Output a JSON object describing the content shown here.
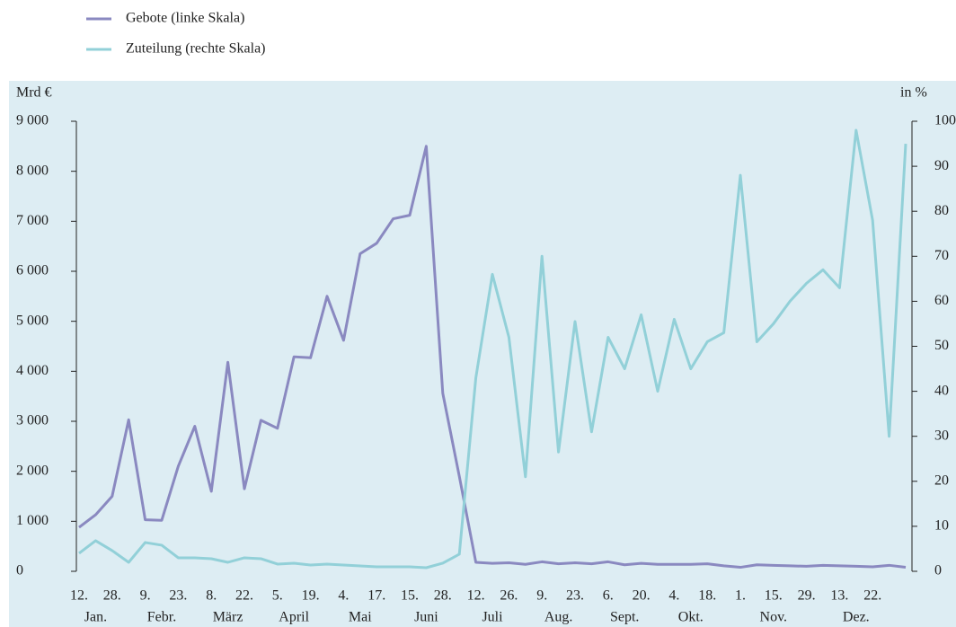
{
  "chart_data": {
    "type": "line",
    "y_label": "Mrd €",
    "y2_label": "in %",
    "categories": [
      "12.",
      null,
      "28.",
      null,
      "9.",
      null,
      "23.",
      null,
      "8.",
      null,
      "22.",
      null,
      "5.",
      null,
      "19.",
      null,
      "4.",
      null,
      "17.",
      null,
      "15.",
      null,
      "28.",
      null,
      "12.",
      null,
      "26.",
      null,
      "9.",
      null,
      "23.",
      null,
      "6.",
      null,
      "20.",
      null,
      "4.",
      null,
      "18.",
      null,
      "1.",
      null,
      "15.",
      null,
      "29.",
      null,
      "13.",
      null,
      "22.",
      null,
      null
    ],
    "months": [
      "Jan.",
      "Febr.",
      "März",
      "April",
      "Mai",
      "Juni",
      "Juli",
      "Aug.",
      "Sept.",
      "Okt.",
      "Nov.",
      "Dez."
    ],
    "series": [
      {
        "name": "Gebote (linke Skala)",
        "color": "#8a89c0",
        "axis": "y",
        "values": [
          880,
          1130,
          1500,
          3030,
          1030,
          1020,
          2100,
          2900,
          1600,
          4180,
          1650,
          3020,
          2860,
          4290,
          4270,
          5500,
          4620,
          6350,
          6560,
          7050,
          7120,
          8500,
          3560,
          1900,
          180,
          160,
          170,
          140,
          190,
          150,
          170,
          150,
          190,
          130,
          160,
          140,
          140,
          140,
          150,
          110,
          80,
          130,
          120,
          110,
          100,
          120,
          110,
          100,
          90,
          120,
          80
        ]
      },
      {
        "name": "Zuteilung (rechte Skala)",
        "color": "#92d0d8",
        "axis": "y2",
        "values": [
          4,
          6.8,
          4.6,
          2,
          6.4,
          5.8,
          3,
          3,
          2.8,
          2,
          3,
          2.8,
          1.6,
          1.8,
          1.4,
          1.6,
          1.4,
          1.2,
          1,
          1,
          1,
          0.8,
          1.8,
          3.8,
          43,
          66,
          52,
          21,
          70,
          26.5,
          55.5,
          31,
          52,
          45,
          57,
          40,
          56,
          45,
          51,
          53,
          88,
          51,
          55,
          60,
          64,
          67,
          63,
          98,
          78,
          30,
          95
        ]
      }
    ],
    "ylim": [
      0,
      9000
    ],
    "yticks": [
      0,
      {
        "value": 1000,
        "label": "1 000"
      },
      {
        "value": 2000,
        "label": "2 000"
      },
      {
        "value": 3000,
        "label": "3 000"
      },
      {
        "value": 4000,
        "label": "4 000"
      },
      {
        "value": 5000,
        "label": "5 000"
      },
      {
        "value": 6000,
        "label": "6 000"
      },
      {
        "value": 7000,
        "label": "7 000"
      },
      {
        "value": 8000,
        "label": "8 000"
      },
      {
        "value": 9000,
        "label": "9 000"
      }
    ],
    "y2lim": [
      0,
      100
    ],
    "y2ticks": [
      0,
      10,
      20,
      30,
      40,
      50,
      60,
      70,
      80,
      90,
      100
    ],
    "background": "#ddedf3"
  }
}
